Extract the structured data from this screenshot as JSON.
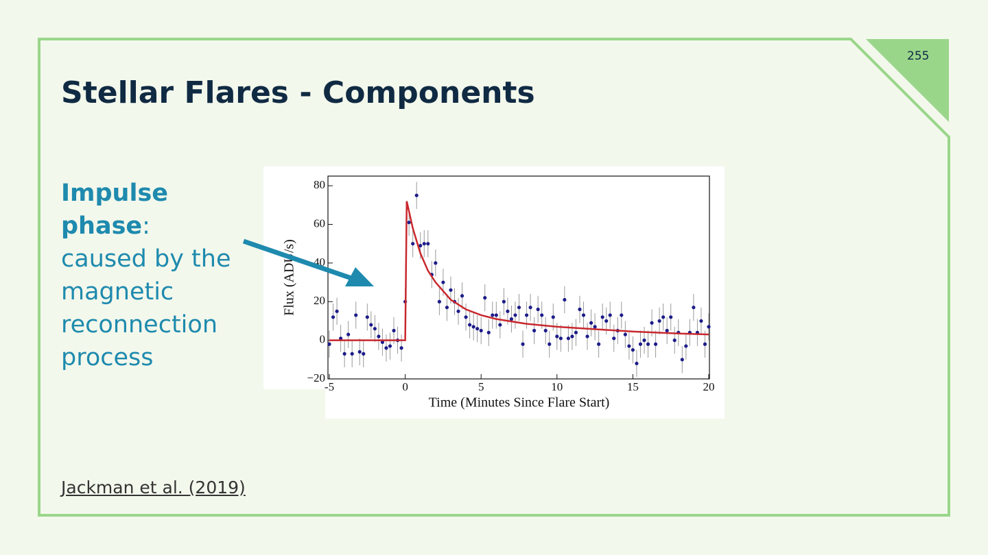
{
  "slide": {
    "title": "Stellar Flares - Components",
    "page_number": "255",
    "term": "Impulse phase",
    "text": ": caused by the magnetic reconnection process",
    "citation": "Jackman et al. (2019)"
  },
  "chart_data": {
    "type": "scatter",
    "xlabel": "Time (Minutes Since Flare Start)",
    "ylabel": "Flux (ADU/s)",
    "xlim": [
      -5,
      20
    ],
    "ylim": [
      -20,
      85
    ],
    "xticks": [
      -5,
      0,
      5,
      10,
      15,
      20
    ],
    "yticks": [
      {
        "value": -20,
        "label": "−20"
      },
      0,
      20,
      40,
      60,
      80
    ],
    "points": {
      "color": "#1c1c8a",
      "error": 7,
      "x": [
        -5,
        -4.75,
        -4.5,
        -4.25,
        -4,
        -3.75,
        -3.5,
        -3.25,
        -3,
        -2.75,
        -2.5,
        -2.25,
        -2,
        -1.75,
        -1.5,
        -1.25,
        -1,
        -0.75,
        -0.5,
        -0.25,
        0,
        0.25,
        0.5,
        0.75,
        1,
        1.25,
        1.5,
        1.75,
        2,
        2.25,
        2.5,
        2.75,
        3,
        3.25,
        3.5,
        3.75,
        4,
        4.25,
        4.5,
        4.75,
        5,
        5.25,
        5.5,
        5.75,
        6,
        6.25,
        6.5,
        6.75,
        7,
        7.25,
        7.5,
        7.75,
        8,
        8.25,
        8.5,
        8.75,
        9,
        9.25,
        9.5,
        9.75,
        10,
        10.25,
        10.5,
        10.75,
        11,
        11.25,
        11.5,
        11.75,
        12,
        12.25,
        12.5,
        12.75,
        13,
        13.25,
        13.5,
        13.75,
        14,
        14.25,
        14.5,
        14.75,
        15,
        15.25,
        15.5,
        15.75,
        16,
        16.25,
        16.5,
        16.75,
        17,
        17.25,
        17.5,
        17.75,
        18,
        18.25,
        18.5,
        18.75,
        19,
        19.25,
        19.5,
        19.75,
        20
      ],
      "values": [
        -2,
        12,
        15,
        1,
        -7,
        3,
        -7,
        13,
        -6,
        -7,
        12,
        8,
        6,
        2,
        -1,
        -4,
        -3,
        5,
        0,
        -4,
        20,
        61,
        50,
        75,
        49,
        50,
        50,
        34,
        40,
        20,
        30,
        17,
        26,
        20,
        15,
        23,
        12,
        8,
        7,
        6,
        5,
        22,
        4,
        13,
        13,
        8,
        20,
        15,
        11,
        13,
        17,
        -2,
        13,
        17,
        5,
        16,
        13,
        5,
        -2,
        12,
        2,
        1,
        21,
        1,
        2,
        4,
        16,
        13,
        2,
        9,
        7,
        -2,
        12,
        10,
        13,
        1,
        5,
        13,
        3,
        -3,
        -5,
        -12,
        -2,
        0,
        -2,
        9,
        -2,
        10,
        12,
        5,
        12,
        0,
        4,
        -10,
        -3,
        4,
        17,
        4,
        10,
        -2,
        7
      ]
    },
    "fit": {
      "color": "#c8282d",
      "x": [
        -5,
        0,
        0.1,
        0.5,
        1,
        1.5,
        2,
        3,
        4,
        5,
        6,
        8,
        10,
        12,
        15,
        18,
        20
      ],
      "values": [
        0,
        0,
        72,
        58,
        45,
        36,
        30,
        21,
        16,
        13,
        11,
        8.5,
        7,
        6,
        4.5,
        3.5,
        3
      ]
    }
  }
}
